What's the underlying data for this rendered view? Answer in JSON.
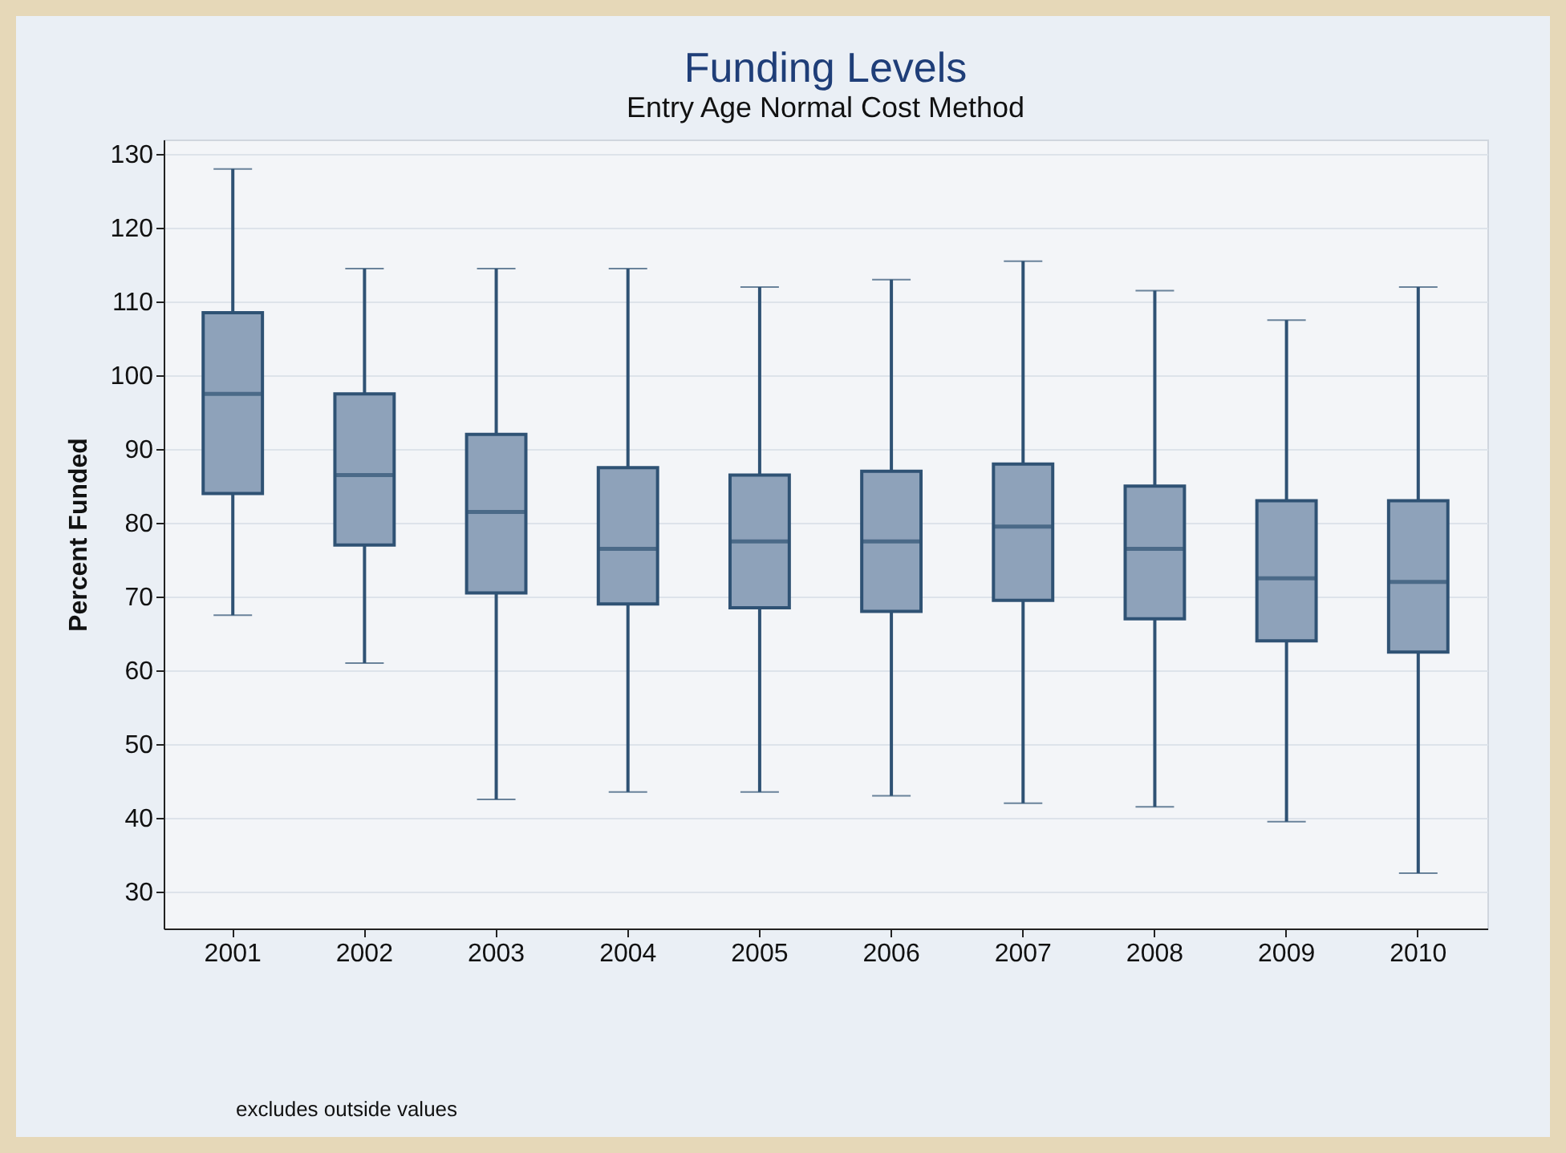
{
  "chart_data": {
    "type": "box",
    "title": "Funding Levels",
    "subtitle": "Entry Age Normal Cost Method",
    "ylabel": "Percent Funded",
    "categories": [
      "2001",
      "2002",
      "2003",
      "2004",
      "2005",
      "2006",
      "2007",
      "2008",
      "2009",
      "2010"
    ],
    "color": "#8ea2ba",
    "boxes": [
      {
        "low": 67.5,
        "q1": 84,
        "median": 97.5,
        "q3": 108.5,
        "high": 128
      },
      {
        "low": 61,
        "q1": 77,
        "median": 86.5,
        "q3": 97.5,
        "high": 114.5
      },
      {
        "low": 42.5,
        "q1": 70.5,
        "median": 81.5,
        "q3": 92,
        "high": 114.5
      },
      {
        "low": 43.5,
        "q1": 69,
        "median": 76.5,
        "q3": 87.5,
        "high": 114.5
      },
      {
        "low": 43.5,
        "q1": 68.5,
        "median": 77.5,
        "q3": 86.5,
        "high": 112
      },
      {
        "low": 43,
        "q1": 68,
        "median": 77.5,
        "q3": 87,
        "high": 113
      },
      {
        "low": 42,
        "q1": 69.5,
        "median": 79.5,
        "q3": 88,
        "high": 115.5
      },
      {
        "low": 41.5,
        "q1": 67,
        "median": 76.5,
        "q3": 85,
        "high": 111.5
      },
      {
        "low": 39.5,
        "q1": 64,
        "median": 72.5,
        "q3": 83,
        "high": 107.5
      },
      {
        "low": 32.5,
        "q1": 62.5,
        "median": 72,
        "q3": 83,
        "high": 112
      }
    ],
    "ylim": [
      25,
      132
    ],
    "yticks": [
      30,
      40,
      50,
      60,
      70,
      80,
      90,
      100,
      110,
      120,
      130
    ],
    "grid": "y",
    "annotations": [
      "excludes outside values"
    ]
  }
}
